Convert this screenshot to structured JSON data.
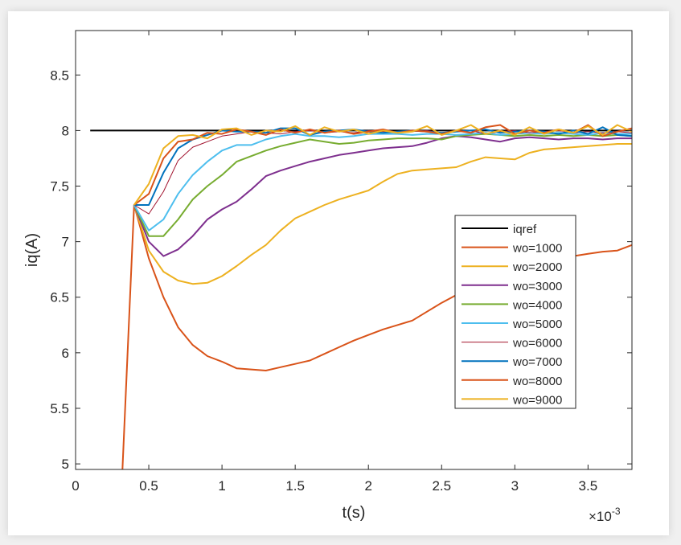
{
  "chart_data": {
    "type": "line",
    "xlabel": "t(s)",
    "ylabel": "iq(A)",
    "x_exponent_label": "×10",
    "x_exponent_power": "-3",
    "xlim": [
      0,
      3.8
    ],
    "ylim": [
      4.95,
      8.9
    ],
    "x_ticks": [
      0,
      0.5,
      1,
      1.5,
      2,
      2.5,
      3,
      3.5
    ],
    "x_tick_labels": [
      "0",
      "0.5",
      "1",
      "1.5",
      "2",
      "2.5",
      "3",
      "3.5"
    ],
    "y_ticks": [
      5,
      5.5,
      6,
      6.5,
      7,
      7.5,
      8,
      8.5
    ],
    "y_tick_labels": [
      "5",
      "5.5",
      "6",
      "6.5",
      "7",
      "7.5",
      "8",
      "8.5"
    ],
    "legend_placement": "right",
    "series": [
      {
        "name": "iqref",
        "color": "#000000",
        "width": 2,
        "x": [
          0.1,
          3.8
        ],
        "y": [
          8.0,
          8.0
        ]
      },
      {
        "name": "wo=1000",
        "color": "#d95319",
        "width": 2,
        "x": [
          0.32,
          0.4,
          0.5,
          0.6,
          0.7,
          0.8,
          0.9,
          1.0,
          1.1,
          1.2,
          1.3,
          1.4,
          1.5,
          1.6,
          1.7,
          1.8,
          1.9,
          2.0,
          2.1,
          2.2,
          2.3,
          2.4,
          2.5,
          2.6,
          2.7,
          2.8,
          2.9,
          3.0,
          3.1,
          3.2,
          3.3,
          3.4,
          3.5,
          3.6,
          3.7,
          3.8
        ],
        "y": [
          4.95,
          7.33,
          6.85,
          6.5,
          6.23,
          6.07,
          5.97,
          5.92,
          5.86,
          5.85,
          5.84,
          5.87,
          5.9,
          5.93,
          5.99,
          6.05,
          6.11,
          6.16,
          6.21,
          6.25,
          6.29,
          6.37,
          6.45,
          6.52,
          6.59,
          6.63,
          6.68,
          6.73,
          6.77,
          6.8,
          6.84,
          6.87,
          6.89,
          6.91,
          6.92,
          6.97
        ]
      },
      {
        "name": "wo=2000",
        "color": "#edb120",
        "width": 2,
        "x": [
          0.4,
          0.5,
          0.6,
          0.7,
          0.8,
          0.9,
          1.0,
          1.1,
          1.2,
          1.3,
          1.4,
          1.5,
          1.6,
          1.7,
          1.8,
          1.9,
          2.0,
          2.1,
          2.2,
          2.3,
          2.4,
          2.5,
          2.6,
          2.7,
          2.8,
          2.9,
          3.0,
          3.1,
          3.2,
          3.3,
          3.4,
          3.5,
          3.6,
          3.7,
          3.8
        ],
        "y": [
          7.33,
          6.92,
          6.73,
          6.65,
          6.62,
          6.63,
          6.69,
          6.78,
          6.88,
          6.97,
          7.1,
          7.21,
          7.27,
          7.33,
          7.38,
          7.42,
          7.46,
          7.54,
          7.61,
          7.64,
          7.65,
          7.66,
          7.67,
          7.72,
          7.76,
          7.75,
          7.74,
          7.8,
          7.83,
          7.84,
          7.85,
          7.86,
          7.87,
          7.88,
          7.88
        ]
      },
      {
        "name": "wo=3000",
        "color": "#7e2f8e",
        "width": 2,
        "x": [
          0.4,
          0.5,
          0.6,
          0.7,
          0.8,
          0.9,
          1.0,
          1.1,
          1.2,
          1.3,
          1.4,
          1.5,
          1.6,
          1.7,
          1.8,
          1.9,
          2.0,
          2.1,
          2.2,
          2.3,
          2.4,
          2.5,
          2.6,
          2.7,
          2.8,
          2.9,
          3.0,
          3.1,
          3.2,
          3.3,
          3.4,
          3.5,
          3.6,
          3.7,
          3.8
        ],
        "y": [
          7.33,
          7.0,
          6.87,
          6.93,
          7.05,
          7.2,
          7.29,
          7.36,
          7.47,
          7.59,
          7.64,
          7.68,
          7.72,
          7.75,
          7.78,
          7.8,
          7.82,
          7.84,
          7.85,
          7.86,
          7.89,
          7.93,
          7.95,
          7.94,
          7.92,
          7.9,
          7.93,
          7.94,
          7.93,
          7.92,
          7.93,
          7.93,
          7.92,
          7.93,
          7.93
        ]
      },
      {
        "name": "wo=4000",
        "color": "#77ac30",
        "width": 2,
        "x": [
          0.4,
          0.5,
          0.6,
          0.7,
          0.8,
          0.9,
          1.0,
          1.1,
          1.2,
          1.3,
          1.4,
          1.5,
          1.6,
          1.7,
          1.8,
          1.9,
          2.0,
          2.1,
          2.2,
          2.3,
          2.4,
          2.5,
          2.6,
          2.7,
          2.8,
          2.9,
          3.0,
          3.1,
          3.2,
          3.3,
          3.4,
          3.5,
          3.6,
          3.7,
          3.8
        ],
        "y": [
          7.33,
          7.05,
          7.05,
          7.2,
          7.38,
          7.5,
          7.6,
          7.72,
          7.77,
          7.82,
          7.86,
          7.89,
          7.92,
          7.9,
          7.88,
          7.89,
          7.91,
          7.92,
          7.93,
          7.93,
          7.93,
          7.92,
          7.95,
          7.96,
          7.97,
          7.96,
          7.95,
          7.96,
          7.95,
          7.96,
          7.95,
          7.96,
          7.95,
          7.96,
          7.95
        ]
      },
      {
        "name": "wo=5000",
        "color": "#4dbeee",
        "width": 2,
        "x": [
          0.4,
          0.5,
          0.6,
          0.7,
          0.8,
          0.9,
          1.0,
          1.1,
          1.2,
          1.3,
          1.4,
          1.5,
          1.6,
          1.7,
          1.8,
          1.9,
          2.0,
          2.1,
          2.2,
          2.3,
          2.4,
          2.5,
          2.6,
          2.7,
          2.8,
          2.9,
          3.0,
          3.1,
          3.2,
          3.3,
          3.4,
          3.5,
          3.6,
          3.7,
          3.8
        ],
        "y": [
          7.33,
          7.1,
          7.2,
          7.43,
          7.6,
          7.72,
          7.82,
          7.87,
          7.87,
          7.92,
          7.95,
          7.97,
          7.95,
          7.95,
          7.94,
          7.95,
          7.97,
          7.97,
          7.97,
          7.96,
          7.97,
          7.97,
          7.96,
          7.97,
          7.98,
          7.96,
          7.97,
          7.98,
          7.97,
          7.98,
          7.97,
          7.96,
          7.98,
          7.97,
          7.97
        ]
      },
      {
        "name": "wo=6000",
        "color": "#a2142f",
        "width": 1,
        "x": [
          0.4,
          0.5,
          0.6,
          0.7,
          0.8,
          0.9,
          1.0,
          1.1,
          1.2,
          1.3,
          1.4,
          1.5,
          1.6,
          1.7,
          1.8,
          1.9,
          2.0,
          2.1,
          2.2,
          2.3,
          2.4,
          2.5,
          2.6,
          2.7,
          2.8,
          2.9,
          3.0,
          3.1,
          3.2,
          3.3,
          3.4,
          3.5,
          3.6,
          3.7,
          3.8
        ],
        "y": [
          7.33,
          7.25,
          7.45,
          7.73,
          7.85,
          7.9,
          7.95,
          7.97,
          7.99,
          7.98,
          7.97,
          7.99,
          8.0,
          7.98,
          7.99,
          7.98,
          8.0,
          7.99,
          7.98,
          7.99,
          8.0,
          7.98,
          7.99,
          8.0,
          7.97,
          7.99,
          8.0,
          7.98,
          7.99,
          8.0,
          7.98,
          7.99,
          7.98,
          7.99,
          7.98
        ]
      },
      {
        "name": "wo=7000",
        "color": "#0072bd",
        "width": 2,
        "x": [
          0.4,
          0.5,
          0.6,
          0.7,
          0.8,
          0.9,
          1.0,
          1.1,
          1.2,
          1.3,
          1.4,
          1.5,
          1.6,
          1.7,
          1.8,
          1.9,
          2.0,
          2.1,
          2.2,
          2.3,
          2.4,
          2.5,
          2.6,
          2.7,
          2.8,
          2.9,
          3.0,
          3.1,
          3.2,
          3.3,
          3.4,
          3.5,
          3.6,
          3.7,
          3.8
        ],
        "y": [
          7.33,
          7.33,
          7.62,
          7.84,
          7.92,
          7.96,
          8.0,
          7.99,
          7.99,
          7.98,
          8.02,
          8.02,
          7.96,
          7.99,
          8.0,
          8.01,
          7.99,
          7.98,
          7.99,
          8.0,
          7.99,
          7.98,
          7.99,
          8.0,
          8.01,
          7.98,
          7.99,
          8.0,
          7.99,
          7.97,
          8.0,
          7.97,
          8.03,
          7.96,
          7.95
        ]
      },
      {
        "name": "wo=8000",
        "color": "#d95319",
        "width": 2,
        "x": [
          0.4,
          0.5,
          0.6,
          0.7,
          0.8,
          0.9,
          1.0,
          1.1,
          1.2,
          1.3,
          1.4,
          1.5,
          1.6,
          1.7,
          1.8,
          1.9,
          2.0,
          2.1,
          2.2,
          2.3,
          2.4,
          2.5,
          2.6,
          2.7,
          2.8,
          2.9,
          3.0,
          3.1,
          3.2,
          3.3,
          3.4,
          3.5,
          3.6,
          3.7,
          3.8
        ],
        "y": [
          7.33,
          7.43,
          7.75,
          7.9,
          7.92,
          7.98,
          7.97,
          8.01,
          7.99,
          7.96,
          8.01,
          7.98,
          8.01,
          7.98,
          8.0,
          7.97,
          7.99,
          8.01,
          7.98,
          8.0,
          7.99,
          7.97,
          8.0,
          7.98,
          8.03,
          8.05,
          7.97,
          8.0,
          7.98,
          8.01,
          7.98,
          8.05,
          7.95,
          7.99,
          8.02
        ]
      },
      {
        "name": "wo=9000",
        "color": "#edb120",
        "width": 2,
        "x": [
          0.4,
          0.5,
          0.6,
          0.7,
          0.8,
          0.9,
          1.0,
          1.1,
          1.2,
          1.3,
          1.4,
          1.5,
          1.6,
          1.7,
          1.8,
          1.9,
          2.0,
          2.1,
          2.2,
          2.3,
          2.4,
          2.5,
          2.6,
          2.7,
          2.8,
          2.9,
          3.0,
          3.1,
          3.2,
          3.3,
          3.4,
          3.5,
          3.6,
          3.7,
          3.8
        ],
        "y": [
          7.33,
          7.52,
          7.84,
          7.95,
          7.96,
          7.93,
          8.01,
          8.02,
          7.96,
          8.0,
          7.99,
          8.04,
          7.96,
          8.03,
          7.99,
          8.01,
          7.97,
          8.0,
          7.98,
          7.99,
          8.04,
          7.96,
          8.0,
          8.05,
          7.97,
          8.0,
          7.96,
          8.03,
          7.97,
          8.01,
          7.98,
          8.04,
          7.96,
          8.05,
          7.99
        ]
      }
    ]
  }
}
